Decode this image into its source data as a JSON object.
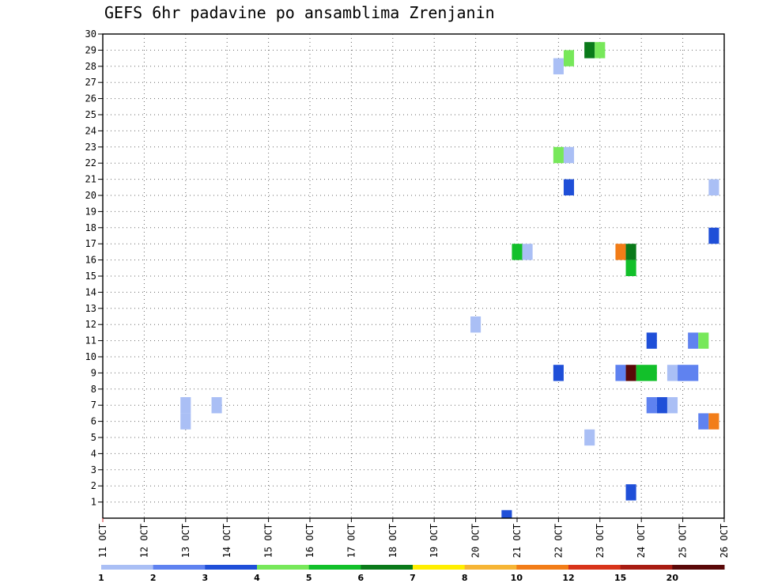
{
  "chart_data": {
    "type": "heatmap",
    "title": "GEFS 6hr padavine po ansamblima Zrenjanin",
    "y_ticks": [
      "1",
      "2",
      "3",
      "4",
      "5",
      "6",
      "7",
      "8",
      "9",
      "10",
      "11",
      "12",
      "13",
      "14",
      "15",
      "16",
      "17",
      "18",
      "19",
      "20",
      "21",
      "22",
      "23",
      "24",
      "25",
      "26",
      "27",
      "28",
      "29",
      "30"
    ],
    "ylim": [
      0,
      30
    ],
    "x_ticks": [
      "11 OCT",
      "12 OCT",
      "13 OCT",
      "14 OCT",
      "15 OCT",
      "16 OCT",
      "17 OCT",
      "18 OCT",
      "19 OCT",
      "20 OCT",
      "21 OCT",
      "22 OCT",
      "23 OCT",
      "24 OCT",
      "25 OCT",
      "26 OCT"
    ],
    "xlim_days": [
      0,
      15
    ],
    "legend": {
      "labels": [
        "1",
        "2",
        "3",
        "4",
        "5",
        "6",
        "7",
        "8",
        "10",
        "12",
        "15",
        "20"
      ],
      "colors": [
        "#aabff5",
        "#5f82f0",
        "#1f4fd8",
        "#77e85a",
        "#12c02a",
        "#0a7a1a",
        "#ffee00",
        "#f6b535",
        "#f27d18",
        "#d8341a",
        "#a81c12",
        "#5a0808"
      ]
    },
    "cells": [
      {
        "member": 1.6,
        "day": 12.75,
        "level": 3,
        "span": 1
      },
      {
        "member": 28.5,
        "day": 11.25,
        "level": 4,
        "span": 1
      },
      {
        "member": 29,
        "day": 11.75,
        "level": 6,
        "span": 1
      },
      {
        "member": 29,
        "day": 12.0,
        "level": 4,
        "span": 1
      },
      {
        "member": 28,
        "day": 11.0,
        "level": 1,
        "span": 1
      },
      {
        "member": 22.5,
        "day": 11.0,
        "level": 4,
        "span": 1
      },
      {
        "member": 22.5,
        "day": 11.25,
        "level": 1,
        "span": 1
      },
      {
        "member": 20.5,
        "day": 11.25,
        "level": 3,
        "span": 1
      },
      {
        "member": 20.5,
        "day": 14.75,
        "level": 1,
        "span": 1
      },
      {
        "member": 17.5,
        "day": 14.75,
        "level": 3,
        "span": 1
      },
      {
        "member": 16.5,
        "day": 10.0,
        "level": 5,
        "span": 1
      },
      {
        "member": 16.5,
        "day": 10.25,
        "level": 1,
        "span": 1
      },
      {
        "member": 16.5,
        "day": 12.5,
        "level": 9,
        "span": 1
      },
      {
        "member": 16.5,
        "day": 12.75,
        "level": 6,
        "span": 1
      },
      {
        "member": 15.5,
        "day": 12.75,
        "level": 5,
        "span": 1
      },
      {
        "member": 12,
        "day": 9.0,
        "level": 1,
        "span": 1
      },
      {
        "member": 11,
        "day": 13.25,
        "level": 3,
        "span": 1
      },
      {
        "member": 11,
        "day": 14.25,
        "level": 2,
        "span": 1
      },
      {
        "member": 11,
        "day": 14.5,
        "level": 4,
        "span": 1
      },
      {
        "member": 9,
        "day": 11.0,
        "level": 3,
        "span": 1
      },
      {
        "member": 9,
        "day": 12.5,
        "level": 2,
        "span": 1
      },
      {
        "member": 9,
        "day": 12.75,
        "level": 12,
        "span": 1
      },
      {
        "member": 9,
        "day": 13.0,
        "level": 5,
        "span": 2
      },
      {
        "member": 9,
        "day": 13.75,
        "level": 1,
        "span": 1
      },
      {
        "member": 9,
        "day": 14.0,
        "level": 2,
        "span": 2
      },
      {
        "member": 7,
        "day": 13.25,
        "level": 2,
        "span": 1
      },
      {
        "member": 7,
        "day": 13.5,
        "level": 3,
        "span": 1
      },
      {
        "member": 7,
        "day": 13.75,
        "level": 1,
        "span": 1
      },
      {
        "member": 7,
        "day": 2.0,
        "level": 1,
        "span": 1
      },
      {
        "member": 6,
        "day": 2.0,
        "level": 1,
        "span": 1
      },
      {
        "member": 7,
        "day": 2.75,
        "level": 1,
        "span": 1
      },
      {
        "member": 6,
        "day": 14.5,
        "level": 2,
        "span": 1
      },
      {
        "member": 6,
        "day": 14.75,
        "level": 9,
        "span": 1
      },
      {
        "member": 5,
        "day": 11.75,
        "level": 1,
        "span": 1
      },
      {
        "member": 0,
        "day": 9.75,
        "level": 3,
        "span": 1
      }
    ],
    "grid": true
  }
}
